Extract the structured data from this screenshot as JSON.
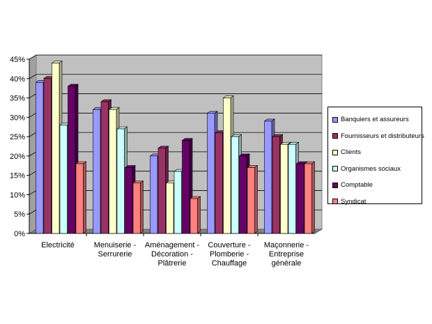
{
  "chart_data": {
    "type": "bar",
    "categories": [
      [
        "Electricité"
      ],
      [
        "Menuiserie -",
        "Serrurerie"
      ],
      [
        "Aménagement -",
        "Décoration -",
        "Plâtrerie"
      ],
      [
        "Couverture -",
        "Plomberie -",
        "Chauffage"
      ],
      [
        "Maçonnerie -",
        "Entreprise",
        "générale"
      ]
    ],
    "series": [
      {
        "name": "Banquiers et assureurs",
        "color": "#9999ff",
        "values": [
          39,
          32,
          20,
          31,
          29
        ]
      },
      {
        "name": "Fournisseurs et distributeurs",
        "color": "#993366",
        "values": [
          40,
          34,
          22,
          26,
          25
        ]
      },
      {
        "name": "Clients",
        "color": "#ffffcc",
        "values": [
          44,
          32,
          13,
          35,
          23
        ]
      },
      {
        "name": "Organismes sociaux",
        "color": "#ccffff",
        "values": [
          28,
          27,
          16,
          25,
          23
        ]
      },
      {
        "name": "Comptable",
        "color": "#660066",
        "values": [
          38,
          17,
          24,
          20,
          18
        ]
      },
      {
        "name": "Syndicat",
        "color": "#ff8080",
        "values": [
          18,
          13,
          9,
          17,
          18
        ]
      }
    ],
    "ylim": [
      0,
      45
    ],
    "yticks": [
      "0%",
      "5%",
      "10%",
      "15%",
      "20%",
      "25%",
      "30%",
      "35%",
      "40%",
      "45%"
    ],
    "grid": true,
    "legend_position": "right",
    "plot_background": "#c0c0c0"
  }
}
